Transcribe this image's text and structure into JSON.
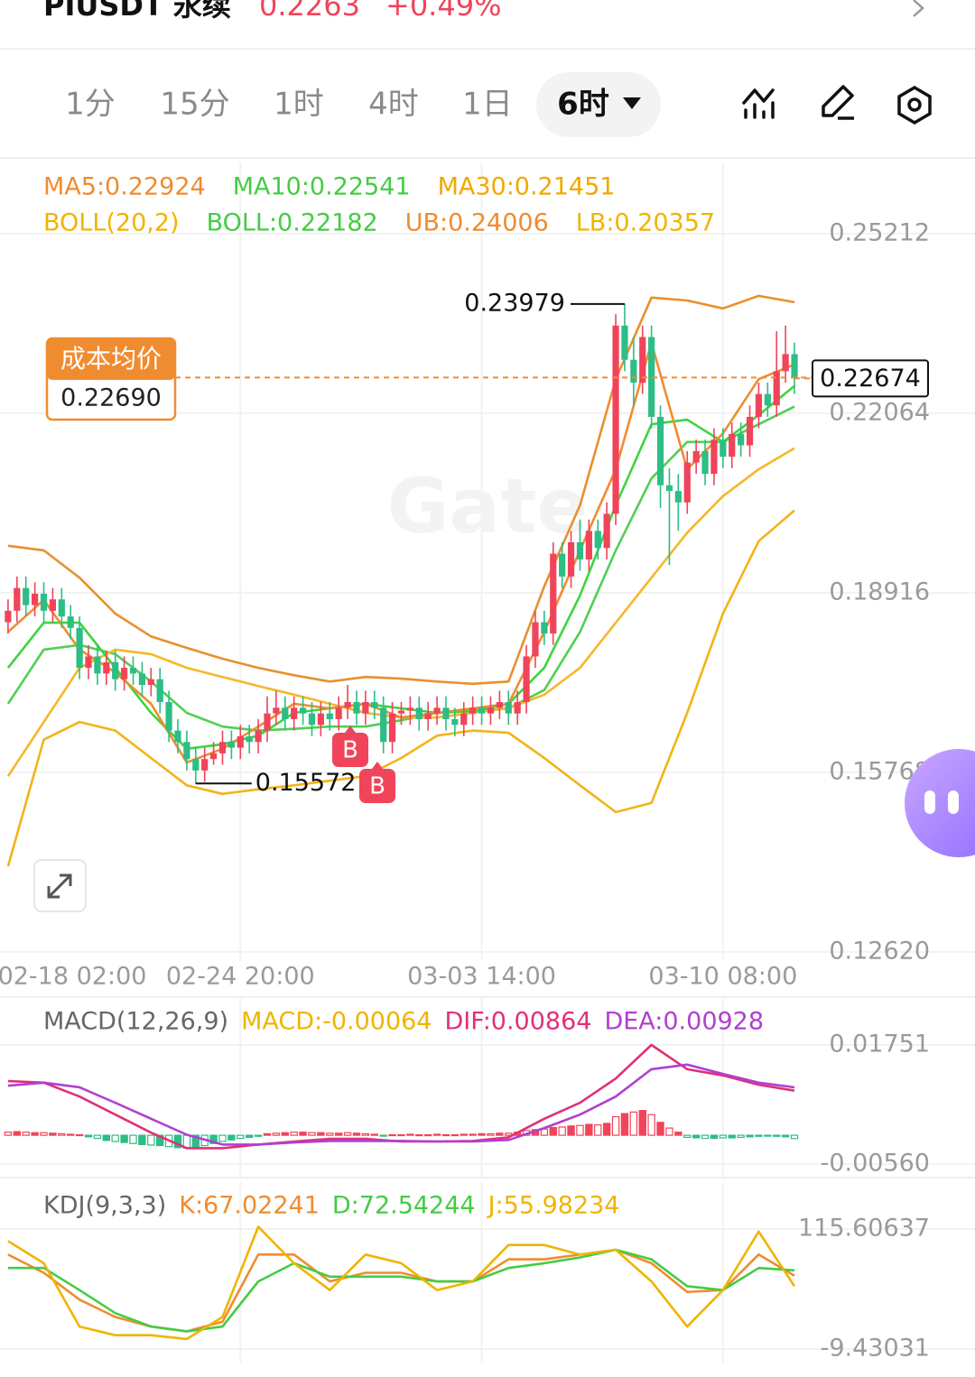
{
  "header": {
    "symbol": "PIUSDT 永续",
    "price": "0.2263",
    "change": "+0.49%"
  },
  "tabs": [
    "1分",
    "15分",
    "1时",
    "4时",
    "1日",
    "6时"
  ],
  "chart_data": [
    {
      "type": "candlestick",
      "watermark": "Gate",
      "legend": [
        [
          {
            "text": "MA5:0.22924",
            "color": "#f08c30"
          },
          {
            "text": "MA10:0.22541",
            "color": "#44cc44"
          },
          {
            "text": "MA30:0.21451",
            "color": "#f0a800"
          }
        ],
        [
          {
            "text": "BOLL(20,2)",
            "color": "#f0b400"
          },
          {
            "text": "BOLL:0.22182",
            "color": "#44cc44"
          },
          {
            "text": "UB:0.24006",
            "color": "#f08c30"
          },
          {
            "text": "LB:0.20357",
            "color": "#f0b400"
          }
        ]
      ],
      "up_color": "#f0445a",
      "down_color": "#2dbd85",
      "xlim": [
        -0.9,
        108.2
      ],
      "xticks": [
        {
          "value": -1,
          "label": "02-18 02:00"
        },
        {
          "value": 26,
          "label": "02-24 20:00"
        },
        {
          "value": 53,
          "label": "03-03 14:00"
        },
        {
          "value": 80,
          "label": "03-10 08:00"
        }
      ],
      "ylim": [
        0.1246,
        0.2646
      ],
      "yticks": [
        0.25212,
        0.22064,
        0.18916,
        0.15768,
        {
          "value": 0.1262,
          "label": "0.12620"
        }
      ],
      "grid": true,
      "candles": [
        [
          0.184,
          0.188,
          0.182,
          0.186
        ],
        [
          0.186,
          0.192,
          0.184,
          0.19
        ],
        [
          0.19,
          0.192,
          0.185,
          0.187
        ],
        [
          0.187,
          0.191,
          0.185,
          0.189
        ],
        [
          0.189,
          0.191,
          0.184,
          0.186
        ],
        [
          0.186,
          0.19,
          0.184,
          0.188
        ],
        [
          0.188,
          0.19,
          0.183,
          0.185
        ],
        [
          0.185,
          0.187,
          0.181,
          0.183
        ],
        [
          0.183,
          0.185,
          0.174,
          0.176
        ],
        [
          0.176,
          0.18,
          0.174,
          0.178
        ],
        [
          0.178,
          0.18,
          0.173,
          0.175
        ],
        [
          0.175,
          0.179,
          0.173,
          0.177
        ],
        [
          0.177,
          0.179,
          0.172,
          0.174
        ],
        [
          0.174,
          0.178,
          0.172,
          0.176
        ],
        [
          0.176,
          0.178,
          0.173,
          0.175
        ],
        [
          0.175,
          0.177,
          0.171,
          0.173
        ],
        [
          0.173,
          0.176,
          0.171,
          0.174
        ],
        [
          0.174,
          0.176,
          0.168,
          0.17
        ],
        [
          0.17,
          0.172,
          0.163,
          0.165
        ],
        [
          0.165,
          0.167,
          0.161,
          0.163
        ],
        [
          0.163,
          0.165,
          0.158,
          0.16
        ],
        [
          0.16,
          0.162,
          0.15572,
          0.158
        ],
        [
          0.158,
          0.162,
          0.156,
          0.16
        ],
        [
          0.16,
          0.163,
          0.159,
          0.161
        ],
        [
          0.161,
          0.165,
          0.159,
          0.163
        ],
        [
          0.163,
          0.165,
          0.16,
          0.162
        ],
        [
          0.162,
          0.166,
          0.16,
          0.164
        ],
        [
          0.164,
          0.166,
          0.161,
          0.163
        ],
        [
          0.163,
          0.167,
          0.161,
          0.165
        ],
        [
          0.165,
          0.171,
          0.163,
          0.168
        ],
        [
          0.168,
          0.172,
          0.166,
          0.169
        ],
        [
          0.169,
          0.171,
          0.165,
          0.167
        ],
        [
          0.167,
          0.171,
          0.165,
          0.169
        ],
        [
          0.169,
          0.171,
          0.166,
          0.168
        ],
        [
          0.168,
          0.17,
          0.164,
          0.166
        ],
        [
          0.166,
          0.17,
          0.164,
          0.168
        ],
        [
          0.168,
          0.17,
          0.165,
          0.167
        ],
        [
          0.167,
          0.171,
          0.165,
          0.169
        ],
        [
          0.169,
          0.173,
          0.167,
          0.17
        ],
        [
          0.17,
          0.172,
          0.166,
          0.168
        ],
        [
          0.168,
          0.172,
          0.166,
          0.17
        ],
        [
          0.17,
          0.172,
          0.167,
          0.169
        ],
        [
          0.169,
          0.171,
          0.161,
          0.163
        ],
        [
          0.163,
          0.17,
          0.161,
          0.168
        ],
        [
          0.168,
          0.17,
          0.166,
          0.1685
        ],
        [
          0.1685,
          0.171,
          0.166,
          0.169
        ],
        [
          0.169,
          0.171,
          0.165,
          0.167
        ],
        [
          0.167,
          0.17,
          0.165,
          0.168
        ],
        [
          0.168,
          0.171,
          0.166,
          0.169
        ],
        [
          0.169,
          0.171,
          0.165,
          0.167
        ],
        [
          0.167,
          0.169,
          0.164,
          0.166
        ],
        [
          0.166,
          0.17,
          0.164,
          0.168
        ],
        [
          0.168,
          0.171,
          0.166,
          0.169
        ],
        [
          0.169,
          0.171,
          0.166,
          0.168
        ],
        [
          0.168,
          0.171,
          0.166,
          0.169
        ],
        [
          0.169,
          0.172,
          0.167,
          0.17
        ],
        [
          0.17,
          0.172,
          0.166,
          0.168
        ],
        [
          0.168,
          0.172,
          0.166,
          0.17
        ],
        [
          0.17,
          0.18,
          0.168,
          0.178
        ],
        [
          0.178,
          0.186,
          0.176,
          0.184
        ],
        [
          0.184,
          0.186,
          0.18,
          0.182
        ],
        [
          0.182,
          0.198,
          0.18,
          0.196
        ],
        [
          0.196,
          0.198,
          0.19,
          0.192
        ],
        [
          0.192,
          0.2,
          0.19,
          0.198
        ],
        [
          0.198,
          0.202,
          0.193,
          0.195
        ],
        [
          0.195,
          0.202,
          0.193,
          0.2
        ],
        [
          0.2,
          0.202,
          0.195,
          0.197
        ],
        [
          0.197,
          0.205,
          0.195,
          0.203
        ],
        [
          0.203,
          0.238,
          0.201,
          0.236
        ],
        [
          0.236,
          0.23979,
          0.228,
          0.23
        ],
        [
          0.23,
          0.234,
          0.222,
          0.226
        ],
        [
          0.226,
          0.236,
          0.224,
          0.234
        ],
        [
          0.234,
          0.236,
          0.218,
          0.22
        ],
        [
          0.22,
          0.222,
          0.204,
          0.208
        ],
        [
          0.208,
          0.211,
          0.194,
          0.207
        ],
        [
          0.207,
          0.21,
          0.2,
          0.205
        ],
        [
          0.205,
          0.214,
          0.203,
          0.212
        ],
        [
          0.212,
          0.216,
          0.21,
          0.214
        ],
        [
          0.214,
          0.216,
          0.208,
          0.21
        ],
        [
          0.21,
          0.218,
          0.208,
          0.216
        ],
        [
          0.216,
          0.218,
          0.211,
          0.213
        ],
        [
          0.213,
          0.219,
          0.211,
          0.217
        ],
        [
          0.217,
          0.219,
          0.213,
          0.215
        ],
        [
          0.215,
          0.222,
          0.213,
          0.22
        ],
        [
          0.22,
          0.226,
          0.218,
          0.224
        ],
        [
          0.224,
          0.226,
          0.22,
          0.222
        ],
        [
          0.222,
          0.235,
          0.22,
          0.228
        ],
        [
          0.228,
          0.236,
          0.226,
          0.231
        ],
        [
          0.231,
          0.233,
          0.224,
          0.22674
        ]
      ],
      "line_x": [
        0,
        4,
        8,
        12,
        16,
        20,
        24,
        28,
        32,
        36,
        40,
        44,
        48,
        52,
        56,
        60,
        64,
        68,
        72,
        76,
        80,
        84,
        88
      ],
      "series": [
        {
          "color": "#e8902e",
          "values": [
            0.1974,
            0.1966,
            0.1918,
            0.1855,
            0.1815,
            0.1795,
            0.1776,
            0.176,
            0.1747,
            0.1736,
            0.1744,
            0.1741,
            0.1736,
            0.1732,
            0.1736,
            0.1903,
            0.2045,
            0.2266,
            0.2409,
            0.2404,
            0.239,
            0.2412,
            0.2401
          ]
        },
        {
          "color": "#f2b417",
          "values": [
            0.1412,
            0.1634,
            0.1665,
            0.165,
            0.1602,
            0.1554,
            0.1539,
            0.1547,
            0.1554,
            0.1562,
            0.157,
            0.1602,
            0.1641,
            0.165,
            0.1646,
            0.1602,
            0.1554,
            0.1507,
            0.1523,
            0.1681,
            0.1855,
            0.1982,
            0.2036
          ]
        },
        {
          "color": "#52cf52",
          "values": [
            0.1697,
            0.1792,
            0.18,
            0.1784,
            0.1736,
            0.1681,
            0.1657,
            0.165,
            0.1653,
            0.1657,
            0.1657,
            0.1668,
            0.1681,
            0.1684,
            0.1689,
            0.1721,
            0.1823,
            0.1966,
            0.2092,
            0.2156,
            0.2156,
            0.2187,
            0.2218
          ]
        },
        {
          "color": "#f5b82a",
          "values": [
            0.157,
            0.1665,
            0.176,
            0.1792,
            0.1784,
            0.176,
            0.1744,
            0.1728,
            0.1713,
            0.1697,
            0.1681,
            0.1673,
            0.1673,
            0.1681,
            0.1689,
            0.1713,
            0.176,
            0.1839,
            0.1918,
            0.1997,
            0.2061,
            0.2108,
            0.2145
          ]
        },
        {
          "color": "#3ed43e",
          "values": [
            0.176,
            0.1839,
            0.1839,
            0.176,
            0.1681,
            0.1618,
            0.1626,
            0.1641,
            0.1681,
            0.1689,
            0.1697,
            0.1689,
            0.1681,
            0.1684,
            0.1697,
            0.176,
            0.1887,
            0.2045,
            0.2187,
            0.2195,
            0.2156,
            0.2203,
            0.2254
          ]
        },
        {
          "color": "#f08c30",
          "values": [
            0.1823,
            0.1879,
            0.1792,
            0.1752,
            0.1697,
            0.1594,
            0.1618,
            0.1657,
            0.1697,
            0.1689,
            0.1697,
            0.1673,
            0.1681,
            0.1689,
            0.1697,
            0.1823,
            0.1966,
            0.2108,
            0.233,
            0.2108,
            0.2171,
            0.2266,
            0.2292
          ]
        }
      ],
      "cost_line": {
        "label": "成本均价",
        "value": 0.2269,
        "value_label": "0.22690",
        "color": "#f08c30"
      },
      "last_price": 0.22674,
      "markers": [
        "B",
        "B"
      ]
    },
    {
      "type": "macd",
      "title": "MACD(12,26,9)",
      "legend": [
        {
          "text": "MACD:-0.00064",
          "color": "#f0b400"
        },
        {
          "text": "DIF:0.00864",
          "color": "#e0307a"
        },
        {
          "text": "DEA:0.00928",
          "color": "#b040d0"
        }
      ],
      "ylim": [
        -0.0082,
        0.0259
      ],
      "yticks": [
        0.01751,
        {
          "value": -0.0056,
          "label": "-0.00560"
        }
      ],
      "histogram": [
        0.0006,
        0.0007,
        0.0006,
        0.0005,
        0.0005,
        0.0004,
        0.0003,
        0.0002,
        0.0001,
        -0.0003,
        -0.0006,
        -0.001,
        -0.0012,
        -0.0014,
        -0.0016,
        -0.0018,
        -0.0019,
        -0.002,
        -0.0022,
        -0.0024,
        -0.0025,
        -0.0023,
        -0.002,
        -0.0016,
        -0.0012,
        -0.0009,
        -0.0006,
        -0.0004,
        -0.0002,
        0.0003,
        0.0004,
        0.0005,
        0.0006,
        0.0006,
        0.0005,
        0.0005,
        0.0004,
        0.0004,
        0.0005,
        0.0004,
        0.0003,
        0.0002,
        -0.0001,
        0.0001,
        0.0001,
        0.0002,
        0.0001,
        0.0001,
        0.0002,
        0.0001,
        0.0001,
        0.0002,
        0.0002,
        0.0003,
        0.0003,
        0.0004,
        0.0004,
        0.0006,
        0.0009,
        0.0011,
        0.0012,
        0.0015,
        0.0016,
        0.0018,
        0.0019,
        0.0021,
        0.002,
        0.0023,
        0.0036,
        0.0042,
        0.0045,
        0.0048,
        0.004,
        0.0025,
        0.0014,
        0.0006,
        -0.0004,
        -0.0005,
        -0.0006,
        -0.0006,
        -0.0005,
        -0.0005,
        -0.0004,
        -0.0003,
        -0.0002,
        -0.0001,
        -0.0002,
        -0.0003,
        -0.00064
      ],
      "series": [
        {
          "color": "#e0307a",
          "values": [
            0.0105,
            0.0102,
            0.0075,
            0.004,
            0.0005,
            -0.0025,
            -0.0025,
            -0.0018,
            -0.0012,
            -0.0007,
            -0.0007,
            -0.0012,
            -0.0012,
            -0.0011,
            -0.0004,
            0.0032,
            0.0063,
            0.011,
            0.0175,
            0.0128,
            0.0116,
            0.0098,
            0.00864
          ]
        },
        {
          "color": "#b040d0",
          "values": [
            0.0096,
            0.0102,
            0.0093,
            0.0063,
            0.0032,
            0.0001,
            -0.0018,
            -0.0018,
            -0.0014,
            -0.0011,
            -0.0011,
            -0.0011,
            -0.0012,
            -0.0012,
            -0.0009,
            0.0014,
            0.004,
            0.0075,
            0.0128,
            0.0137,
            0.0119,
            0.0102,
            0.00928
          ]
        }
      ]
    },
    {
      "type": "kdj",
      "title": "KDJ(9,3,3)",
      "legend": [
        {
          "text": "K:67.02241",
          "color": "#f08c30"
        },
        {
          "text": "D:72.54244",
          "color": "#44cc44"
        },
        {
          "text": "J:55.98234",
          "color": "#f0b400"
        }
      ],
      "ylim": [
        -23.5,
        159.8
      ],
      "yticks": [
        115.60637,
        -9.43031
      ],
      "series": [
        {
          "color": "#f08c30",
          "values": [
            89,
            70,
            42,
            24,
            14,
            9,
            19,
            89,
            89,
            61,
            70,
            70,
            61,
            61,
            84,
            84,
            89,
            94,
            80,
            50,
            52,
            89,
            67.02241
          ]
        },
        {
          "color": "#44cc44",
          "values": [
            75,
            75,
            52,
            28,
            14,
            9,
            14,
            61,
            80,
            66,
            66,
            66,
            61,
            61,
            75,
            80,
            86,
            94,
            84,
            56,
            52,
            75,
            72.54244
          ]
        },
        {
          "color": "#f0b400",
          "values": [
            103,
            80,
            14,
            5,
            5,
            1,
            24,
            118,
            80,
            52,
            89,
            80,
            52,
            61,
            99,
            99,
            89,
            94,
            61,
            14,
            52,
            113,
            55.98234
          ]
        }
      ]
    }
  ]
}
